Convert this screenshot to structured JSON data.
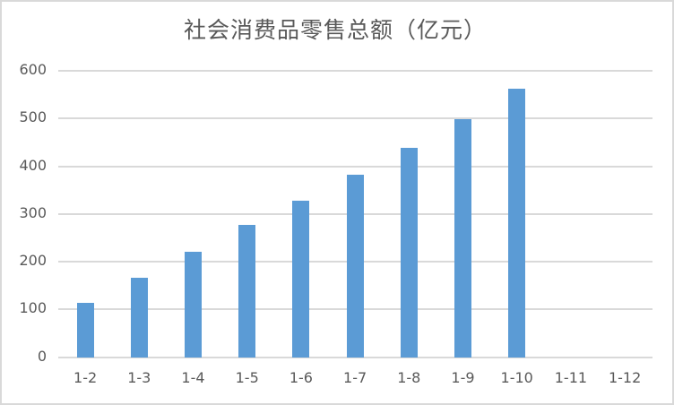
{
  "chart_data": {
    "type": "bar",
    "title": "社会消费品零售总额（亿元）",
    "xlabel": "",
    "ylabel": "",
    "categories": [
      "1-2",
      "1-3",
      "1-4",
      "1-5",
      "1-6",
      "1-7",
      "1-8",
      "1-9",
      "1-10",
      "1-11",
      "1-12"
    ],
    "values": [
      114,
      166,
      221,
      277,
      328,
      382,
      438,
      499,
      562,
      null,
      null
    ],
    "ylim": [
      0,
      600
    ],
    "yticks": [
      0,
      100,
      200,
      300,
      400,
      500,
      600
    ],
    "grid": true,
    "legend": null,
    "bar_color": "#5b9bd5"
  },
  "title": "社会消费品零售总额（亿元）",
  "yticks": [
    "0",
    "100",
    "200",
    "300",
    "400",
    "500",
    "600"
  ],
  "xticks": [
    "1-2",
    "1-3",
    "1-4",
    "1-5",
    "1-6",
    "1-7",
    "1-8",
    "1-9",
    "1-10",
    "1-11",
    "1-12"
  ],
  "colors": {
    "bar": "#5b9bd5",
    "grid": "#d9d9d9",
    "text": "#595959",
    "border": "#d9d9d9"
  }
}
